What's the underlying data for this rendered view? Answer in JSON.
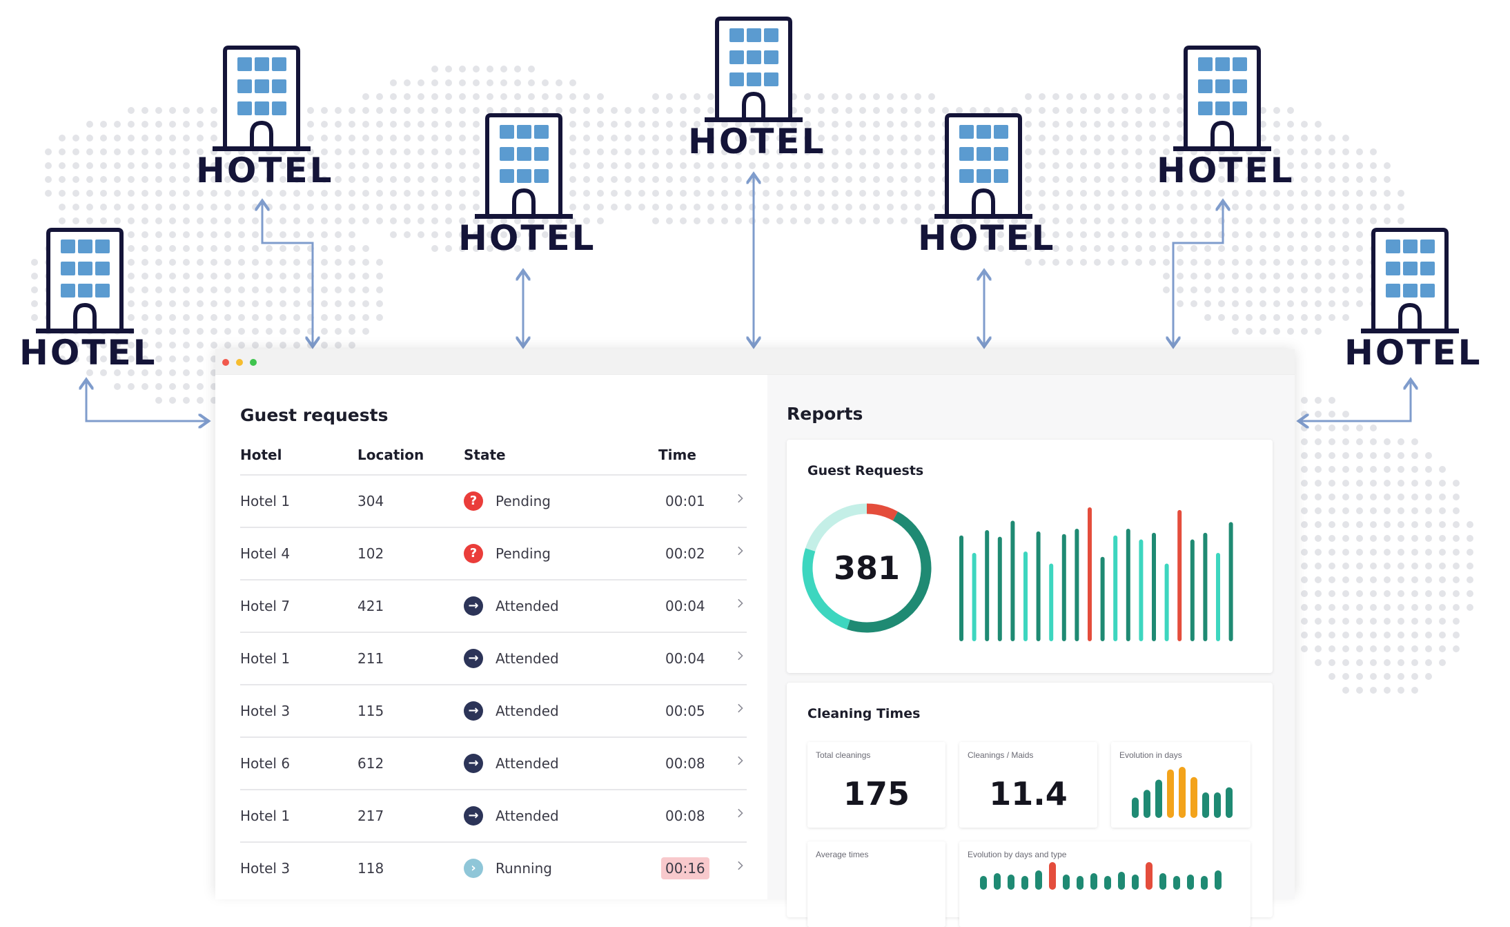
{
  "hotels": [
    {
      "label": "HOTEL"
    },
    {
      "label": "HOTEL"
    },
    {
      "label": "HOTEL"
    },
    {
      "label": "HOTEL"
    },
    {
      "label": "HOTEL"
    },
    {
      "label": "HOTEL"
    },
    {
      "label": "HOTEL"
    }
  ],
  "colors": {
    "navy": "#141438",
    "window_blue": "#5b9bd0",
    "arrow": "#7f9ccc",
    "teal_dark": "#1f8a73",
    "teal_light": "#3dd6bf",
    "red": "#e44d3c",
    "orange": "#f3a31b",
    "pending": "#ea3d3a",
    "attended": "#2c3458",
    "running": "#8fc6d8"
  },
  "window": {
    "controls": [
      "close",
      "minimize",
      "maximize"
    ]
  },
  "guest_requests": {
    "title": "Guest requests",
    "columns": {
      "hotel": "Hotel",
      "location": "Location",
      "state": "State",
      "time": "Time"
    },
    "rows": [
      {
        "hotel": "Hotel 1",
        "location": "304",
        "state": "Pending",
        "state_icon": "question-icon",
        "time": "00:01"
      },
      {
        "hotel": "Hotel 4",
        "location": "102",
        "state": "Pending",
        "state_icon": "question-icon",
        "time": "00:02"
      },
      {
        "hotel": "Hotel 7",
        "location": "421",
        "state": "Attended",
        "state_icon": "arrow-right-icon",
        "time": "00:04"
      },
      {
        "hotel": "Hotel 1",
        "location": "211",
        "state": "Attended",
        "state_icon": "arrow-right-icon",
        "time": "00:04"
      },
      {
        "hotel": "Hotel 3",
        "location": "115",
        "state": "Attended",
        "state_icon": "arrow-right-icon",
        "time": "00:05"
      },
      {
        "hotel": "Hotel 6",
        "location": "612",
        "state": "Attended",
        "state_icon": "arrow-right-icon",
        "time": "00:08"
      },
      {
        "hotel": "Hotel 1",
        "location": "217",
        "state": "Attended",
        "state_icon": "arrow-right-icon",
        "time": "00:08"
      },
      {
        "hotel": "Hotel 3",
        "location": "118",
        "state": "Running",
        "state_icon": "chevron-right-icon",
        "time": "00:16",
        "time_highlight": true
      }
    ]
  },
  "reports": {
    "title": "Reports",
    "guest_requests_card": {
      "title": "Guest Requests",
      "donut_value": "381",
      "donut_segments": [
        0.08,
        0.47,
        0.25,
        0.2
      ],
      "bars": [
        {
          "v": 0.79,
          "c": "d"
        },
        {
          "v": 0.66,
          "c": "l"
        },
        {
          "v": 0.83,
          "c": "d"
        },
        {
          "v": 0.78,
          "c": "d"
        },
        {
          "v": 0.9,
          "c": "d"
        },
        {
          "v": 0.67,
          "c": "l"
        },
        {
          "v": 0.82,
          "c": "d"
        },
        {
          "v": 0.58,
          "c": "l"
        },
        {
          "v": 0.8,
          "c": "d"
        },
        {
          "v": 0.84,
          "c": "d"
        },
        {
          "v": 1.0,
          "c": "r"
        },
        {
          "v": 0.63,
          "c": "d"
        },
        {
          "v": 0.79,
          "c": "l"
        },
        {
          "v": 0.84,
          "c": "d"
        },
        {
          "v": 0.76,
          "c": "l"
        },
        {
          "v": 0.81,
          "c": "d"
        },
        {
          "v": 0.58,
          "c": "l"
        },
        {
          "v": 0.98,
          "c": "r"
        },
        {
          "v": 0.76,
          "c": "d"
        },
        {
          "v": 0.81,
          "c": "d"
        },
        {
          "v": 0.66,
          "c": "l"
        },
        {
          "v": 0.89,
          "c": "d"
        }
      ]
    },
    "cleaning_card": {
      "title": "Cleaning Times",
      "total_cleanings": {
        "label": "Total cleanings",
        "value": "175"
      },
      "cleanings_per_maid": {
        "label": "Cleanings / Maids",
        "value": "11.4"
      },
      "evolution_days": {
        "label": "Evolution in days",
        "bars": [
          {
            "v": 0.4,
            "c": "d"
          },
          {
            "v": 0.55,
            "c": "d"
          },
          {
            "v": 0.75,
            "c": "d"
          },
          {
            "v": 0.95,
            "c": "o"
          },
          {
            "v": 1.0,
            "c": "o"
          },
          {
            "v": 0.8,
            "c": "o"
          },
          {
            "v": 0.5,
            "c": "d"
          },
          {
            "v": 0.5,
            "c": "d"
          },
          {
            "v": 0.6,
            "c": "d"
          }
        ]
      },
      "average_times": {
        "label": "Average times"
      },
      "evolution_days_type": {
        "label": "Evolution by days and type",
        "bars": [
          {
            "v": 0.5,
            "c": "d"
          },
          {
            "v": 0.6,
            "c": "d"
          },
          {
            "v": 0.55,
            "c": "d"
          },
          {
            "v": 0.5,
            "c": "d"
          },
          {
            "v": 0.7,
            "c": "d"
          },
          {
            "v": 1.0,
            "c": "r"
          },
          {
            "v": 0.55,
            "c": "d"
          },
          {
            "v": 0.5,
            "c": "d"
          },
          {
            "v": 0.6,
            "c": "d"
          },
          {
            "v": 0.5,
            "c": "d"
          },
          {
            "v": 0.65,
            "c": "d"
          },
          {
            "v": 0.55,
            "c": "d"
          },
          {
            "v": 1.0,
            "c": "r"
          },
          {
            "v": 0.6,
            "c": "d"
          },
          {
            "v": 0.5,
            "c": "d"
          },
          {
            "v": 0.55,
            "c": "d"
          },
          {
            "v": 0.5,
            "c": "d"
          },
          {
            "v": 0.7,
            "c": "d"
          }
        ]
      }
    }
  }
}
